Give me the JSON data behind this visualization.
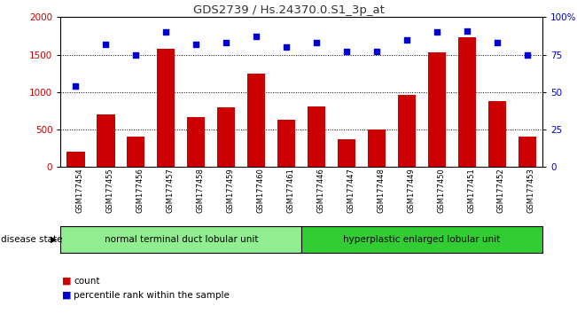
{
  "title": "GDS2739 / Hs.24370.0.S1_3p_at",
  "samples": [
    "GSM177454",
    "GSM177455",
    "GSM177456",
    "GSM177457",
    "GSM177458",
    "GSM177459",
    "GSM177460",
    "GSM177461",
    "GSM177446",
    "GSM177447",
    "GSM177448",
    "GSM177449",
    "GSM177450",
    "GSM177451",
    "GSM177452",
    "GSM177453"
  ],
  "counts": [
    200,
    700,
    400,
    1580,
    660,
    790,
    1240,
    620,
    810,
    370,
    490,
    960,
    1530,
    1730,
    880,
    400
  ],
  "percentiles": [
    54,
    82,
    75,
    90,
    82,
    83,
    87,
    80,
    83,
    77,
    77,
    85,
    90,
    91,
    83,
    75
  ],
  "group1_label": "normal terminal duct lobular unit",
  "group2_label": "hyperplastic enlarged lobular unit",
  "group1_count": 8,
  "group2_count": 8,
  "bar_color": "#cc0000",
  "dot_color": "#0000cc",
  "ylim_left": [
    0,
    2000
  ],
  "ylim_right": [
    0,
    100
  ],
  "yticks_left": [
    0,
    500,
    1000,
    1500,
    2000
  ],
  "yticks_right": [
    0,
    25,
    50,
    75,
    100
  ],
  "bg_color": "#ffffff",
  "plot_bg": "#ffffff",
  "group1_color": "#90ee90",
  "group2_color": "#32cd32",
  "title_color": "#333333",
  "grid_lines": [
    500,
    1000,
    1500
  ]
}
